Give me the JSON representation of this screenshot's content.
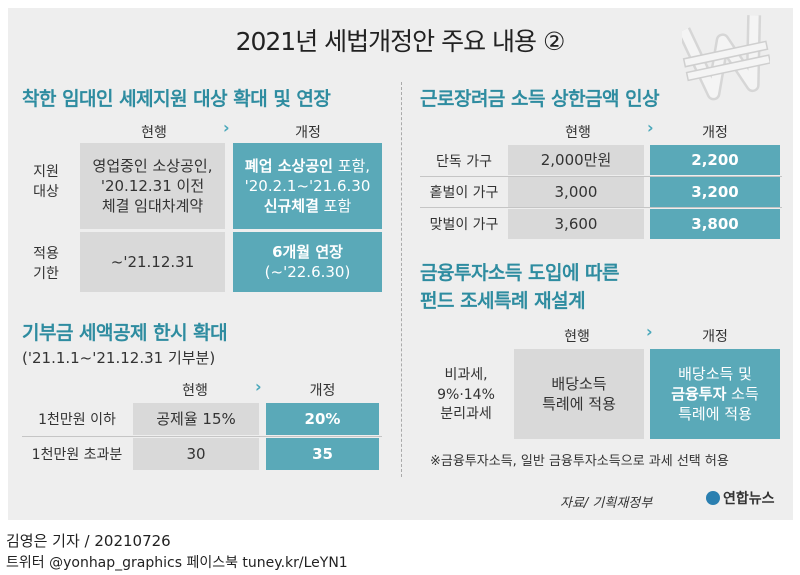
{
  "title": "2021년 세법개정안 주요 내용 ②",
  "colors": {
    "accent": "#2e8ca0",
    "blue_box": "#5aa9b8",
    "gray_box": "#d9d9d9",
    "card_bg": "#eeeeee"
  },
  "icon": "won-symbol-icon",
  "rental": {
    "heading": "착한 임대인 세제지원 대상 확대 및 연장",
    "col_current": "현행",
    "col_revised": "개정",
    "rows": [
      {
        "label_1": "지원",
        "label_2": "대상",
        "current_1": "영업중인 소상공인,",
        "current_2": "'20.12.31 이전",
        "current_3": "체결 임대차계약",
        "revised_1a": "폐업 소상공인",
        "revised_1b": " 포함,",
        "revised_2": "'20.2.1~'21.6.30",
        "revised_3a": "신규체결",
        "revised_3b": " 포함"
      },
      {
        "label_1": "적용",
        "label_2": "기한",
        "current_1": "~'21.12.31",
        "revised_1": "6개월 연장",
        "revised_2": "(~'22.6.30)"
      }
    ]
  },
  "donation": {
    "heading": "기부금 세액공제 한시 확대",
    "subheading": "('21.1.1~'21.12.31 기부분)",
    "col_current": "현행",
    "col_revised": "개정",
    "rows": [
      {
        "label": "1천만원 이하",
        "current": "공제율 15%",
        "revised": "20%"
      },
      {
        "label": "1천만원 초과분",
        "current": "30",
        "revised": "35"
      }
    ]
  },
  "earned_income": {
    "heading": "근로장려금 소득 상한금액 인상",
    "col_current": "현행",
    "col_revised": "개정",
    "rows": [
      {
        "label": "단독 가구",
        "current": "2,000만원",
        "revised": "2,200"
      },
      {
        "label": "홑벌이 가구",
        "current": "3,000",
        "revised": "3,200"
      },
      {
        "label": "맞벌이 가구",
        "current": "3,600",
        "revised": "3,800"
      }
    ]
  },
  "fund": {
    "heading_1": "금융투자소득 도입에 따른",
    "heading_2": "펀드 조세특례 재설계",
    "col_current": "현행",
    "col_revised": "개정",
    "label_1": "비과세,",
    "label_2": "9%·14%",
    "label_3": "분리과세",
    "current_1": "배당소득",
    "current_2": "특례에 적용",
    "revised_1": "배당소득 및",
    "revised_2a": "금융투자",
    "revised_2b": " 소득",
    "revised_3": "특례에 적용",
    "note": "※금융투자소득, 일반 금융투자소득으로 과세 선택 허용"
  },
  "source": "자료/ 기획재정부",
  "logo": "연합뉴스",
  "byline": "김영은 기자 / 20210726",
  "social": "트위터 @yonhap_graphics  페이스북 tuney.kr/LeYN1",
  "arrow_glyph": "›"
}
